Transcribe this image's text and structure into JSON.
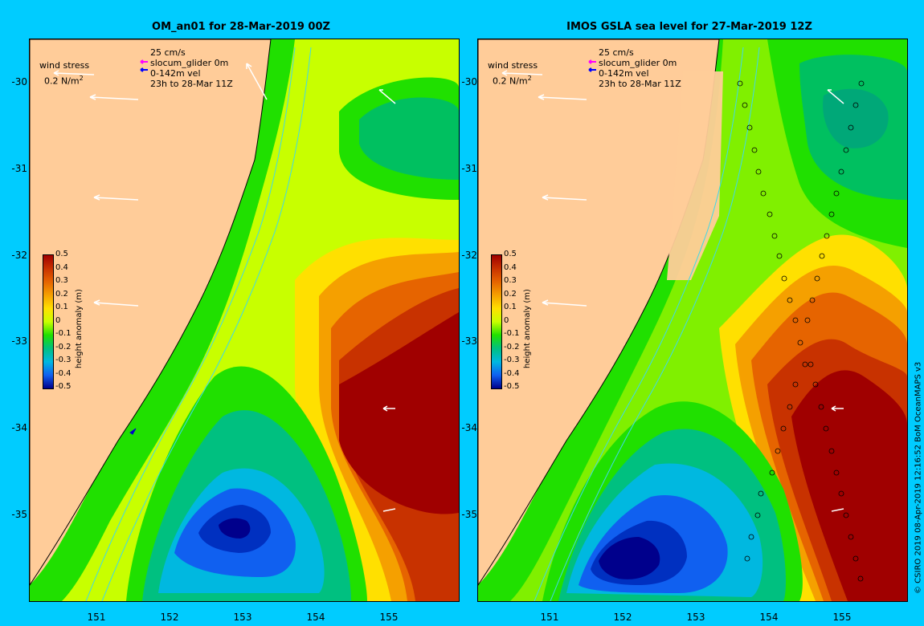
{
  "panels": [
    {
      "title": "OM_an01 for 28-Mar-2019 00Z",
      "wind_stress_label": "wind stress",
      "wind_stress_scale": "0.2 N/m",
      "velocity_scale": "25 cm/s",
      "glider_label": "slocum_glider 0m",
      "vel_label": "0-142m vel",
      "time_label": "23h to 28-Mar 11Z"
    },
    {
      "title": "IMOS GSLA sea level  for 27-Mar-2019 12Z",
      "wind_stress_label": "wind stress",
      "wind_stress_scale": "0.2 N/m",
      "velocity_scale": "25 cm/s",
      "glider_label": "slocum_glider 0m",
      "vel_label": "0-142m vel",
      "time_label": "23h to 28-Mar 11Z"
    }
  ],
  "superscript": "2",
  "lat_ticks": [
    "-30",
    "-31",
    "-32",
    "-33",
    "-34",
    "-35"
  ],
  "lon_ticks": [
    "151",
    "152",
    "153",
    "154",
    "155"
  ],
  "colorbar": {
    "title": "height anomaly (m)",
    "ticks": [
      "0.5",
      "0.4",
      "0.3",
      "0.2",
      "0.1",
      "0",
      "-0.1",
      "-0.2",
      "-0.3",
      "-0.4",
      "-0.5"
    ]
  },
  "credit": "© CSIRO 2019   08-Apr-2019 12:16:52 BoM OceanMAPS v3",
  "colors": {
    "background": "#00ccff",
    "land": "#ffcc99",
    "max": "#a00000",
    "min": "#00008c"
  }
}
